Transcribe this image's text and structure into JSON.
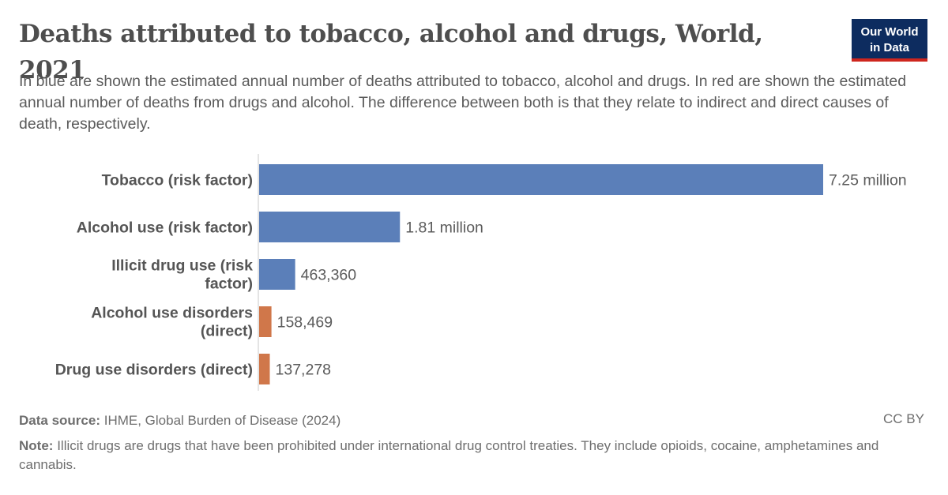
{
  "header": {
    "title": "Deaths attributed to tobacco, alcohol and drugs, World, 2021",
    "subtitle": "In blue are shown the estimated annual number of deaths attributed to tobacco, alcohol and drugs. In red are shown the estimated annual number of deaths from drugs and alcohol. The difference between both is that they relate to indirect and direct causes of death, respectively.",
    "logo_line1": "Our World",
    "logo_line2": "in Data"
  },
  "colors": {
    "blue": "#5b7fb9",
    "orange": "#d0774a",
    "logo_bg": "#0d2c5f",
    "logo_accent": "#ce261e"
  },
  "chart_data": {
    "type": "bar",
    "orientation": "horizontal",
    "categories": [
      "Tobacco (risk factor)",
      "Alcohol use (risk factor)",
      "Illicit drug use (risk factor)",
      "Alcohol use disorders (direct)",
      "Drug use disorders (direct)"
    ],
    "values": [
      7250000,
      1810000,
      463360,
      158469,
      137278
    ],
    "value_labels": [
      "7.25 million",
      "1.81 million",
      "463,360",
      "158,469",
      "137,278"
    ],
    "bar_colors": [
      "blue",
      "blue",
      "blue",
      "orange",
      "orange"
    ],
    "xlim": [
      0,
      7250000
    ]
  },
  "footer": {
    "source_label": "Data source:",
    "source_text": "IHME, Global Burden of Disease (2024)",
    "license": "CC BY",
    "note_label": "Note:",
    "note_text": "Illicit drugs are drugs that have been prohibited under international drug control treaties. They include opioids, cocaine, amphetamines and cannabis."
  }
}
